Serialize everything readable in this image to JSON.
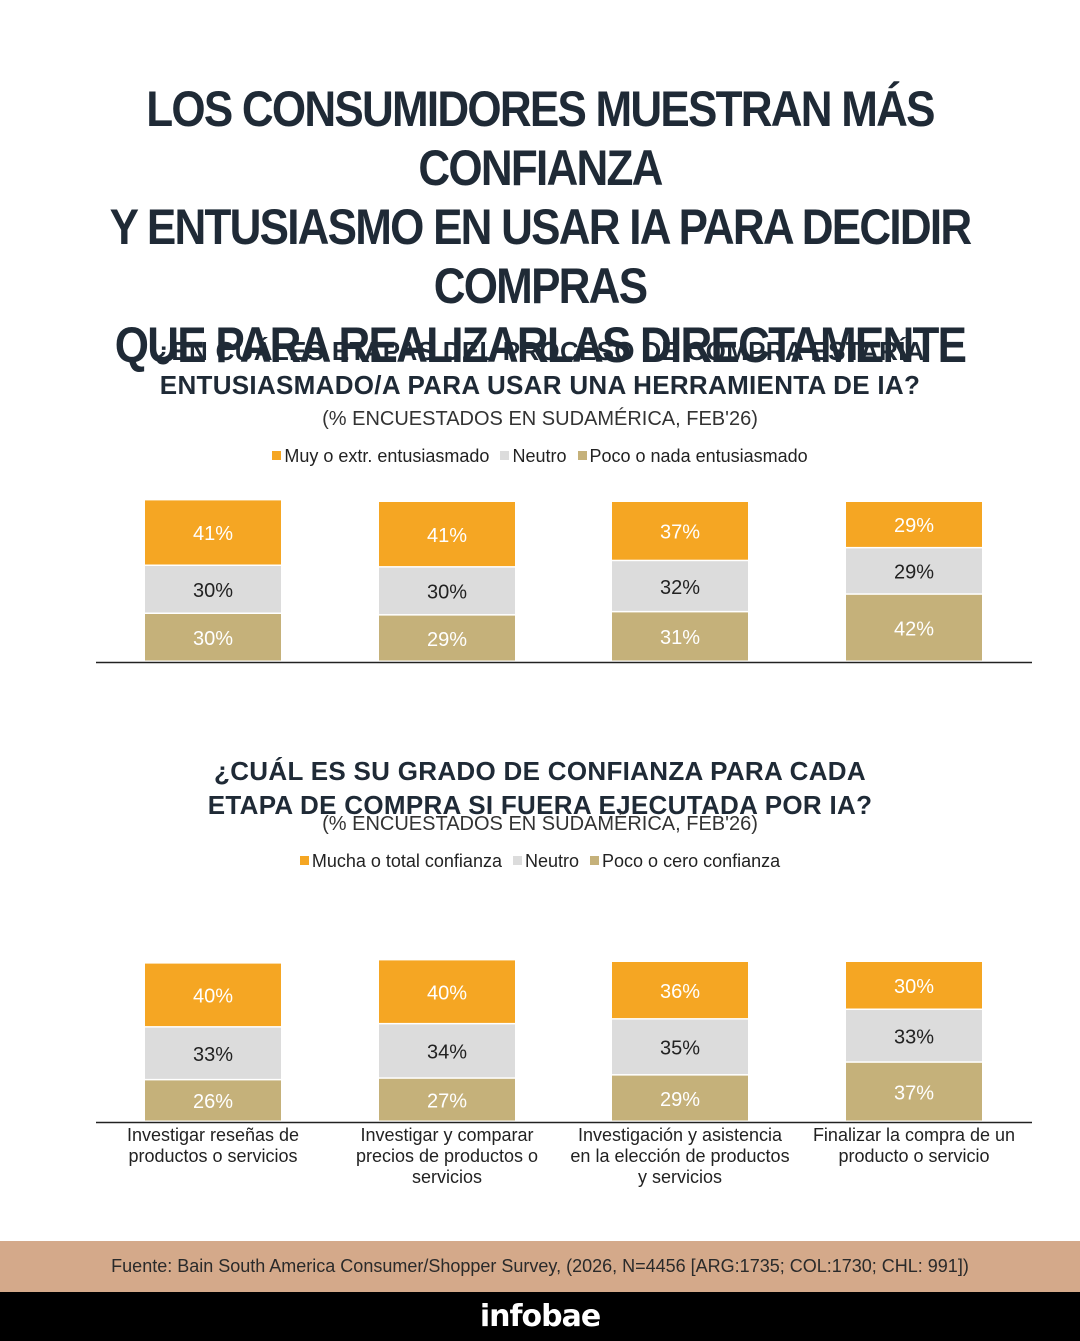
{
  "title_lines": [
    "LOS CONSUMIDORES MUESTRAN MÁS CONFIANZA",
    "Y ENTUSIASMO EN USAR IA PARA DECIDIR COMPRAS",
    "QUE PARA REALIZARLAS DIRECTAMENTE"
  ],
  "colors": {
    "orange": "#f5a623",
    "grey": "#dcdcdc",
    "tan": "#c5b17a"
  },
  "chart_data": [
    {
      "type": "bar",
      "stacked": true,
      "title_lines": [
        "¿EN CUÁLES ETAPAS DEL PROCESO DE COMPRA ESTARÍA",
        "ENTUSIASMADO/A PARA USAR UNA HERRAMIENTA DE IA?"
      ],
      "subtitle": "(% ENCUESTADOS EN SUDAMÉRICA, FEB'26)",
      "categories": [
        "Investigar reseñas de productos o servicios",
        "Investigar y comparar precios de productos o servicios",
        "Investigación y asistencia en la elección de productos y servicios",
        "Finalizar la compra de un producto o servicio"
      ],
      "series": [
        {
          "name": "Muy o extr. entusiasmado",
          "color": "#f5a623",
          "values": [
            41,
            41,
            37,
            29
          ],
          "labels": [
            "41%",
            "41%",
            "37%",
            "29%"
          ]
        },
        {
          "name": "Neutro",
          "color": "#dcdcdc",
          "values": [
            30,
            30,
            32,
            29
          ],
          "labels": [
            "30%",
            "30%",
            "32%",
            "29%"
          ]
        },
        {
          "name": "Poco o nada entusiasmado",
          "color": "#c5b17a",
          "values": [
            30,
            29,
            31,
            42
          ],
          "labels": [
            "30%",
            "29%",
            "31%",
            "42%"
          ]
        }
      ]
    },
    {
      "type": "bar",
      "stacked": true,
      "title_lines": [
        "¿CUÁL ES SU GRADO DE CONFIANZA PARA CADA",
        "ETAPA DE COMPRA SI FUERA EJECUTADA POR IA?"
      ],
      "subtitle": "(% ENCUESTADOS EN SUDAMÉRICA, FEB'26)",
      "categories": [
        "Investigar reseñas de productos o servicios",
        "Investigar y comparar precios de productos o servicios",
        "Investigación y asistencia en la elección de productos y servicios",
        "Finalizar la compra de un producto o servicio"
      ],
      "category_label_lines": [
        [
          "Investigar reseñas de",
          "productos o servicios"
        ],
        [
          "Investigar y comparar",
          "precios de productos o",
          "servicios"
        ],
        [
          "Investigación y asistencia",
          "en la elección de productos",
          "y servicios"
        ],
        [
          "Finalizar la compra de un",
          "producto o servicio"
        ]
      ],
      "series": [
        {
          "name": "Mucha o total confianza",
          "color": "#f5a623",
          "values": [
            40,
            40,
            36,
            30
          ],
          "labels": [
            "40%",
            "40%",
            "36%",
            "30%"
          ]
        },
        {
          "name": "Neutro",
          "color": "#dcdcdc",
          "values": [
            33,
            34,
            35,
            33
          ],
          "labels": [
            "33%",
            "34%",
            "35%",
            "33%"
          ]
        },
        {
          "name": "Poco o cero confianza",
          "color": "#c5b17a",
          "values": [
            26,
            27,
            29,
            37
          ],
          "labels": [
            "26%",
            "27%",
            "29%",
            "37%"
          ]
        }
      ]
    }
  ],
  "footer": {
    "source": "Fuente: Bain South America Consumer/Shopper Survey, (2026, N=4456 [ARG:1735; COL:1730; CHL: 991])",
    "brand": "infobae"
  }
}
